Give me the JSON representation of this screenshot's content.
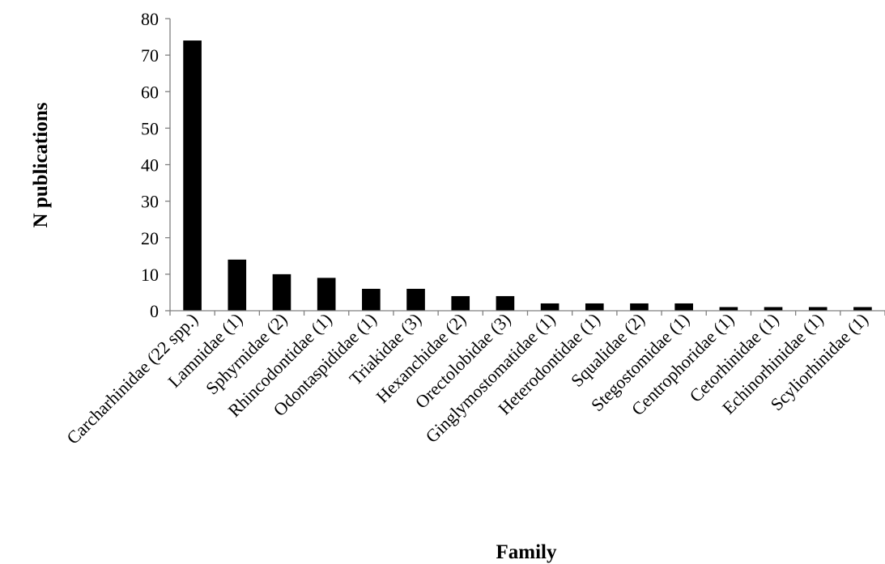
{
  "chart_data": {
    "type": "bar",
    "title": "",
    "xlabel": "Family",
    "ylabel": "N publications",
    "ylim": [
      0,
      80
    ],
    "yticks": [
      0,
      10,
      20,
      30,
      40,
      50,
      60,
      70,
      80
    ],
    "grid": false,
    "legend": "none",
    "bar_color": "#000000",
    "categories": [
      "Carcharhinidae (22 spp.)",
      "Lamnidae (1)",
      "Sphyrnidae (2)",
      "Rhincodontidae (1)",
      "Odontaspididae (1)",
      "Triakidae (3)",
      "Hexanchidae (2)",
      "Orectolobidae (3)",
      "Ginglymostomatidae (1)",
      "Heterodontidae (1)",
      "Squalidae (2)",
      "Stegostomidae (1)",
      "Centrophoridae (1)",
      "Cetorhinidae (1)",
      "Echinorhinidae (1)",
      "Scyliorhinidae (1)"
    ],
    "values": [
      74,
      14,
      10,
      9,
      6,
      6,
      4,
      4,
      2,
      2,
      2,
      2,
      1,
      1,
      1,
      1
    ]
  }
}
